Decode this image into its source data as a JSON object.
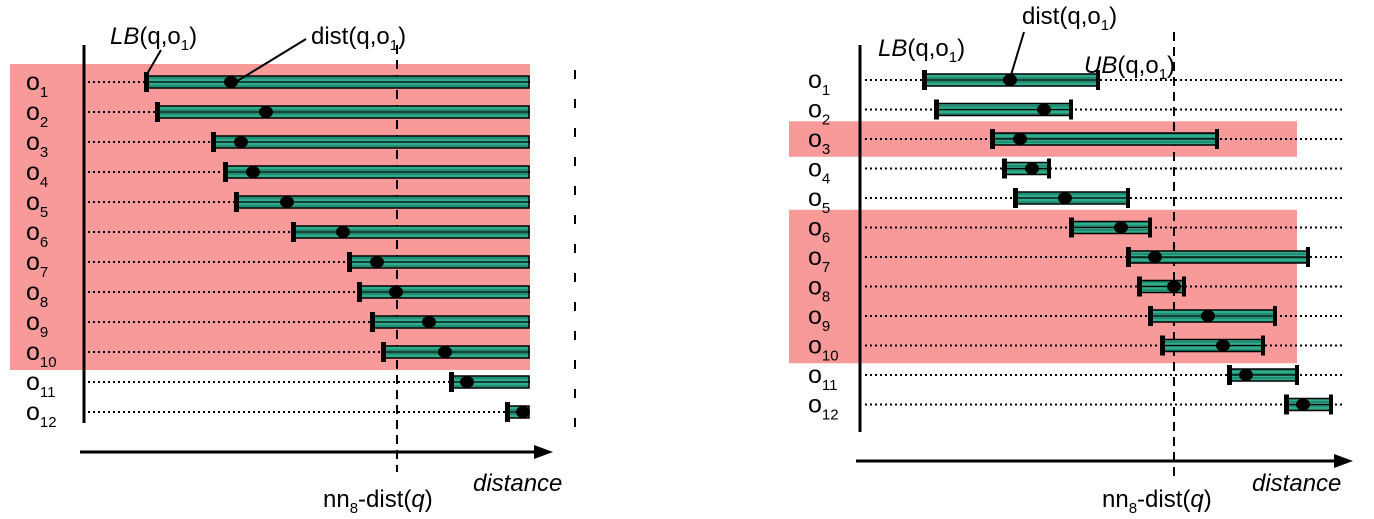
{
  "colors": {
    "highlight": "#f99a9a",
    "interval_fill": "#2fae8e",
    "interval_line": "#000000",
    "dot": "#000000",
    "axis": "#000000"
  },
  "panels": [
    {
      "id": "left",
      "rows": [
        {
          "label": "o",
          "sub": "1",
          "lb": 146,
          "ub": null,
          "dist": 231
        },
        {
          "label": "o",
          "sub": "2",
          "lb": 157,
          "ub": null,
          "dist": 266
        },
        {
          "label": "o",
          "sub": "3",
          "lb": 213,
          "ub": null,
          "dist": 241
        },
        {
          "label": "o",
          "sub": "4",
          "lb": 225,
          "ub": null,
          "dist": 253
        },
        {
          "label": "o",
          "sub": "5",
          "lb": 236,
          "ub": null,
          "dist": 287
        },
        {
          "label": "o",
          "sub": "6",
          "lb": 293,
          "ub": null,
          "dist": 343
        },
        {
          "label": "o",
          "sub": "7",
          "lb": 349,
          "ub": null,
          "dist": 377
        },
        {
          "label": "o",
          "sub": "8",
          "lb": 359,
          "ub": null,
          "dist": 396
        },
        {
          "label": "o",
          "sub": "9",
          "lb": 372,
          "ub": null,
          "dist": 429
        },
        {
          "label": "o",
          "sub": "10",
          "lb": 383,
          "ub": null,
          "dist": 445
        },
        {
          "label": "o",
          "sub": "11",
          "lb": 451,
          "ub": null,
          "dist": 467
        },
        {
          "label": "o",
          "sub": "12",
          "lb": 507,
          "ub": null,
          "dist": 523
        }
      ],
      "highlight_rows": [
        [
          1,
          10
        ]
      ],
      "threshold_x": 397,
      "annotations": {
        "lb": {
          "prefix": "LB",
          "args": "(q,o",
          "sub": "1",
          "close": ")"
        },
        "dist": {
          "prefix": "dist",
          "args": "(q,o",
          "sub": "1",
          "close": ")"
        },
        "nn": {
          "base": "nn",
          "sub": "8",
          "mid": "-dist(",
          "q": "q",
          "close": ")"
        },
        "axis_label": "distance"
      }
    },
    {
      "id": "right",
      "rows": [
        {
          "label": "o",
          "sub": "1",
          "lb": 924,
          "ub": 1098,
          "dist": 1010
        },
        {
          "label": "o",
          "sub": "2",
          "lb": 936,
          "ub": 1071,
          "dist": 1044
        },
        {
          "label": "o",
          "sub": "3",
          "lb": 992,
          "ub": 1217,
          "dist": 1020
        },
        {
          "label": "o",
          "sub": "4",
          "lb": 1004,
          "ub": 1049,
          "dist": 1032
        },
        {
          "label": "o",
          "sub": "5",
          "lb": 1015,
          "ub": 1128,
          "dist": 1065
        },
        {
          "label": "o",
          "sub": "6",
          "lb": 1071,
          "ub": 1150,
          "dist": 1121
        },
        {
          "label": "o",
          "sub": "7",
          "lb": 1128,
          "ub": 1308,
          "dist": 1155
        },
        {
          "label": "o",
          "sub": "8",
          "lb": 1139,
          "ub": 1184,
          "dist": 1174
        },
        {
          "label": "o",
          "sub": "9",
          "lb": 1150,
          "ub": 1275,
          "dist": 1208
        },
        {
          "label": "o",
          "sub": "10",
          "lb": 1162,
          "ub": 1263,
          "dist": 1223
        },
        {
          "label": "o",
          "sub": "11",
          "lb": 1229,
          "ub": 1297,
          "dist": 1246
        },
        {
          "label": "o",
          "sub": "12",
          "lb": 1286,
          "ub": 1331,
          "dist": 1303
        }
      ],
      "highlight_rows": [
        [
          3,
          3
        ],
        [
          6,
          10
        ]
      ],
      "threshold_x": 1174,
      "annotations": {
        "lb": {
          "prefix": "LB",
          "args": "(q,o",
          "sub": "1",
          "close": ")"
        },
        "dist": {
          "prefix": "dist",
          "args": "(q,o",
          "sub": "1",
          "close": ")"
        },
        "ub": {
          "prefix": "UB",
          "args": "(q,o",
          "sub": "1",
          "close": ")"
        },
        "nn": {
          "base": "nn",
          "sub": "8",
          "mid": "-dist(",
          "q": "q",
          "close": ")"
        },
        "axis_label": "distance"
      }
    }
  ]
}
